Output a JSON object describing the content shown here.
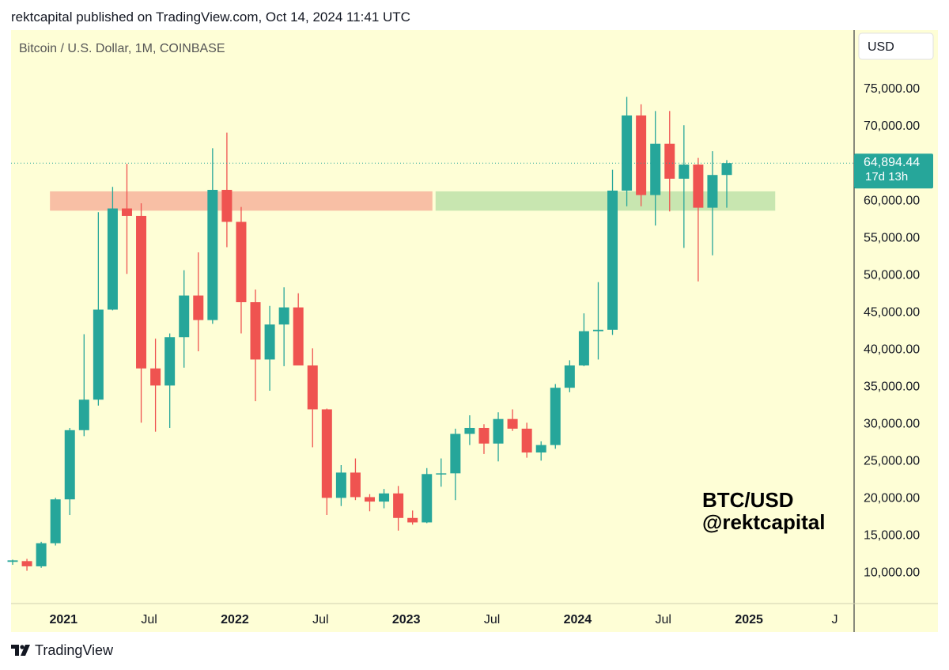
{
  "header": "rektcapital published on TradingView.com, Oct 14, 2024 11:41 UTC",
  "colors": {
    "up": "#26a69a",
    "down": "#ef5350",
    "bg": "#fefed6",
    "red_zone": "#f8bfa5",
    "green_zone": "#c8e6b0",
    "price_tag": "#26a69a"
  },
  "chart_data": {
    "type": "candlestick",
    "title": "Bitcoin / U.S. Dollar, 1M, COINBASE",
    "currency_button": "USD",
    "y_ticks": [
      10000,
      15000,
      20000,
      25000,
      30000,
      35000,
      40000,
      45000,
      50000,
      55000,
      60000,
      65000,
      70000,
      75000
    ],
    "y_tick_labels": [
      "10,000.00",
      "15,000.00",
      "20,000.00",
      "25,000.00",
      "30,000.00",
      "35,000.00",
      "40,000.00",
      "45,000.00",
      "50,000.00",
      "55,000.00",
      "60,000.00",
      "65,000.00",
      "70,000.00",
      "75,000.00"
    ],
    "x_ticks": [
      {
        "label": "2021",
        "index": 4,
        "bold": true
      },
      {
        "label": "Jul",
        "index": 10,
        "bold": false
      },
      {
        "label": "2022",
        "index": 16,
        "bold": true
      },
      {
        "label": "Jul",
        "index": 22,
        "bold": false
      },
      {
        "label": "2023",
        "index": 28,
        "bold": true
      },
      {
        "label": "Jul",
        "index": 34,
        "bold": false
      },
      {
        "label": "2024",
        "index": 40,
        "bold": true
      },
      {
        "label": "Jul",
        "index": 46,
        "bold": false
      },
      {
        "label": "2025",
        "index": 52,
        "bold": true
      },
      {
        "label": "J",
        "index": 58,
        "bold": false
      }
    ],
    "candles": [
      {
        "o": 11300,
        "h": 11600,
        "l": 10900,
        "c": 11500
      },
      {
        "o": 11400,
        "h": 11700,
        "l": 10100,
        "c": 10700
      },
      {
        "o": 10700,
        "h": 14000,
        "l": 10500,
        "c": 13800
      },
      {
        "o": 13800,
        "h": 19900,
        "l": 13500,
        "c": 19700
      },
      {
        "o": 19700,
        "h": 29300,
        "l": 17600,
        "c": 29000
      },
      {
        "o": 29000,
        "h": 41900,
        "l": 28200,
        "c": 33100
      },
      {
        "o": 33100,
        "h": 58300,
        "l": 32300,
        "c": 45200
      },
      {
        "o": 45200,
        "h": 61700,
        "l": 45100,
        "c": 58800
      },
      {
        "o": 58800,
        "h": 64800,
        "l": 50000,
        "c": 57800
      },
      {
        "o": 57800,
        "h": 59500,
        "l": 30000,
        "c": 37300
      },
      {
        "o": 37300,
        "h": 41300,
        "l": 28800,
        "c": 35000
      },
      {
        "o": 35000,
        "h": 42000,
        "l": 29300,
        "c": 41500
      },
      {
        "o": 41500,
        "h": 50500,
        "l": 37400,
        "c": 47100
      },
      {
        "o": 47100,
        "h": 52900,
        "l": 39600,
        "c": 43800
      },
      {
        "o": 43800,
        "h": 66900,
        "l": 43300,
        "c": 61300
      },
      {
        "o": 61300,
        "h": 69000,
        "l": 53600,
        "c": 57000
      },
      {
        "o": 57000,
        "h": 59000,
        "l": 42000,
        "c": 46200
      },
      {
        "o": 46200,
        "h": 47900,
        "l": 32900,
        "c": 38500
      },
      {
        "o": 38500,
        "h": 45700,
        "l": 34300,
        "c": 43200
      },
      {
        "o": 43200,
        "h": 48200,
        "l": 37600,
        "c": 45500
      },
      {
        "o": 45500,
        "h": 47400,
        "l": 37800,
        "c": 37700
      },
      {
        "o": 37700,
        "h": 40000,
        "l": 26700,
        "c": 31800
      },
      {
        "o": 31800,
        "h": 31900,
        "l": 17600,
        "c": 19900
      },
      {
        "o": 19900,
        "h": 24300,
        "l": 18800,
        "c": 23300
      },
      {
        "o": 23300,
        "h": 25200,
        "l": 19600,
        "c": 20000
      },
      {
        "o": 20000,
        "h": 20400,
        "l": 18100,
        "c": 19400
      },
      {
        "o": 19400,
        "h": 21100,
        "l": 18500,
        "c": 20500
      },
      {
        "o": 20500,
        "h": 21500,
        "l": 15500,
        "c": 17200
      },
      {
        "o": 17200,
        "h": 18200,
        "l": 16300,
        "c": 16600
      },
      {
        "o": 16600,
        "h": 23900,
        "l": 16500,
        "c": 23100
      },
      {
        "o": 23100,
        "h": 25200,
        "l": 21400,
        "c": 23200
      },
      {
        "o": 23200,
        "h": 29200,
        "l": 19600,
        "c": 28500
      },
      {
        "o": 28500,
        "h": 31000,
        "l": 27000,
        "c": 29300
      },
      {
        "o": 29300,
        "h": 29800,
        "l": 25800,
        "c": 27200
      },
      {
        "o": 27200,
        "h": 31400,
        "l": 24800,
        "c": 30500
      },
      {
        "o": 30500,
        "h": 31800,
        "l": 28900,
        "c": 29200
      },
      {
        "o": 29200,
        "h": 30000,
        "l": 25300,
        "c": 26000
      },
      {
        "o": 26000,
        "h": 27500,
        "l": 24900,
        "c": 27000
      },
      {
        "o": 27000,
        "h": 35200,
        "l": 26500,
        "c": 34700
      },
      {
        "o": 34700,
        "h": 38400,
        "l": 34100,
        "c": 37700
      },
      {
        "o": 37700,
        "h": 44700,
        "l": 37600,
        "c": 42300
      },
      {
        "o": 42300,
        "h": 48900,
        "l": 38500,
        "c": 42500
      },
      {
        "o": 42500,
        "h": 64000,
        "l": 41800,
        "c": 61200
      },
      {
        "o": 61200,
        "h": 73800,
        "l": 59100,
        "c": 71300
      },
      {
        "o": 71300,
        "h": 72800,
        "l": 59100,
        "c": 60600
      },
      {
        "o": 60600,
        "h": 71900,
        "l": 56500,
        "c": 67500
      },
      {
        "o": 67500,
        "h": 71900,
        "l": 58400,
        "c": 62800
      },
      {
        "o": 62800,
        "h": 70000,
        "l": 53500,
        "c": 64700
      },
      {
        "o": 64700,
        "h": 65600,
        "l": 49000,
        "c": 58900
      },
      {
        "o": 58900,
        "h": 66500,
        "l": 52500,
        "c": 63300
      },
      {
        "o": 63300,
        "h": 65300,
        "l": 58900,
        "c": 64900
      }
    ],
    "zones": [
      {
        "name": "resistance-zone",
        "from_index": 3,
        "to_index": 30,
        "low": 58500,
        "high": 61100,
        "color": "#f8bfa5"
      },
      {
        "name": "support-zone",
        "from_index": 30,
        "to_index": 54,
        "low": 58500,
        "high": 61100,
        "color": "#c8e6b0"
      }
    ],
    "last_price": 64894.44,
    "last_price_label": "64,894.44",
    "countdown_label": "17d 13h",
    "watermark": [
      "BTC/USD",
      "@rektcapital"
    ]
  },
  "footer": {
    "brand": "TradingView",
    "logo_icon": "tradingview-logo-icon"
  }
}
